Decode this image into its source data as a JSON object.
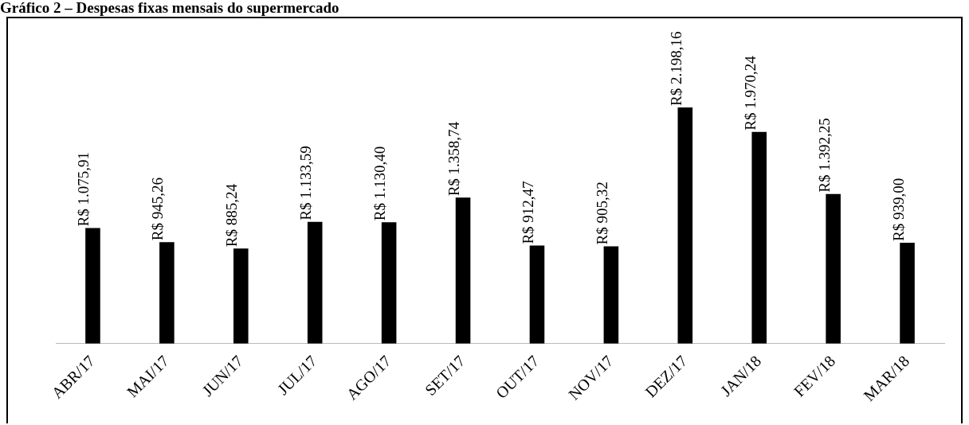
{
  "chart_data": {
    "type": "bar",
    "title": "Gráfico 2 – Despesas fixas mensais do supermercado",
    "categories": [
      "ABR/17",
      "MAI/17",
      "JUN/17",
      "JUL/17",
      "AGO/17",
      "SET/17",
      "OUT/17",
      "NOV/17",
      "DEZ/17",
      "JAN/18",
      "FEV/18",
      "MAR/18"
    ],
    "values": [
      1075.91,
      945.26,
      885.24,
      1133.59,
      1130.4,
      1358.74,
      912.47,
      905.32,
      2198.16,
      1970.24,
      1392.25,
      939.0
    ],
    "value_labels": [
      "R$ 1.075,91",
      "R$ 945,26",
      "R$ 885,24",
      "R$ 1.133,59",
      "R$ 1.130,40",
      "R$ 1.358,74",
      "R$ 912,47",
      "R$ 905,32",
      "R$ 2.198,16",
      "R$ 1.970,24",
      "R$ 1.392,25",
      "R$ 939,00"
    ],
    "color": "#000000",
    "grid": false,
    "legend": false
  }
}
